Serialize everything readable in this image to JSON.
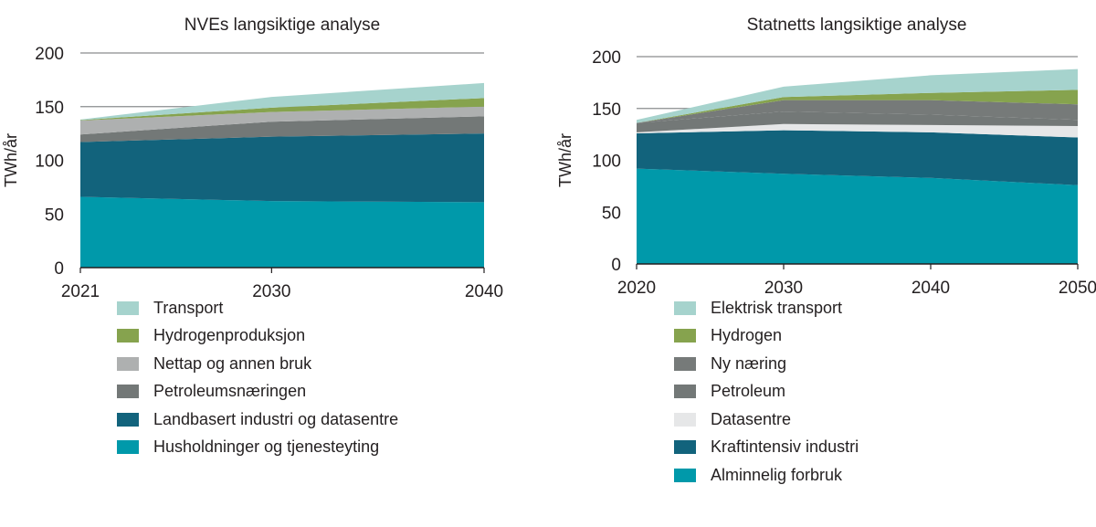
{
  "chart_data": [
    {
      "type": "area",
      "stacked": true,
      "title": "NVEs langsiktige analyse",
      "ylabel": "TWh/år",
      "xlabel": "",
      "x": [
        2021,
        2030,
        2040
      ],
      "xticks": [
        "2021",
        "2030",
        "2040"
      ],
      "yticks": [
        "0",
        "50",
        "100",
        "150",
        "200"
      ],
      "ylim": [
        0,
        200
      ],
      "grid": "horizontal",
      "legend": "bottom",
      "series": [
        {
          "name": "Husholdninger og tjenesteyting",
          "color": "#0099aa",
          "values": [
            66,
            62,
            61
          ]
        },
        {
          "name": "Landbasert industri og datasentre",
          "color": "#12637c",
          "values": [
            51,
            60,
            64
          ]
        },
        {
          "name": "Petroleumsnæringen",
          "color": "#737877",
          "values": [
            7,
            14,
            16
          ]
        },
        {
          "name": "Nettap og annen bruk",
          "color": "#aeb0b0",
          "values": [
            13,
            9,
            9
          ]
        },
        {
          "name": "Hydrogenproduksjon",
          "color": "#86a34e",
          "values": [
            0.5,
            4,
            8
          ]
        },
        {
          "name": "Transport",
          "color": "#a6d3cd",
          "values": [
            0.5,
            10,
            14
          ]
        }
      ]
    },
    {
      "type": "area",
      "stacked": true,
      "title": "Statnetts langsiktige analyse",
      "ylabel": "TWh/år",
      "xlabel": "",
      "x": [
        2020,
        2030,
        2040,
        2050
      ],
      "xticks": [
        "2020",
        "2030",
        "2040",
        "2050"
      ],
      "yticks": [
        "0",
        "50",
        "100",
        "150",
        "200"
      ],
      "ylim": [
        0,
        200
      ],
      "grid": "horizontal",
      "legend": "bottom",
      "series": [
        {
          "name": "Alminnelig forbruk",
          "color": "#0099aa",
          "values": [
            92,
            87,
            83,
            76
          ]
        },
        {
          "name": "Kraftintensiv industri",
          "color": "#12637c",
          "values": [
            34,
            42,
            44,
            46
          ]
        },
        {
          "name": "Datasentre",
          "color": "#e6e7e8",
          "values": [
            1,
            6,
            7,
            11
          ]
        },
        {
          "name": "Petroleum",
          "color": "#737877",
          "values": [
            9,
            12,
            10,
            6
          ]
        },
        {
          "name": "Ny næring",
          "color": "#767a79",
          "values": [
            0,
            11,
            14,
            15
          ]
        },
        {
          "name": "Hydrogen",
          "color": "#86a34e",
          "values": [
            0,
            3,
            7,
            14
          ]
        },
        {
          "name": "Elektrisk transport",
          "color": "#a6d3cd",
          "values": [
            3,
            10,
            17,
            20
          ]
        }
      ]
    }
  ]
}
